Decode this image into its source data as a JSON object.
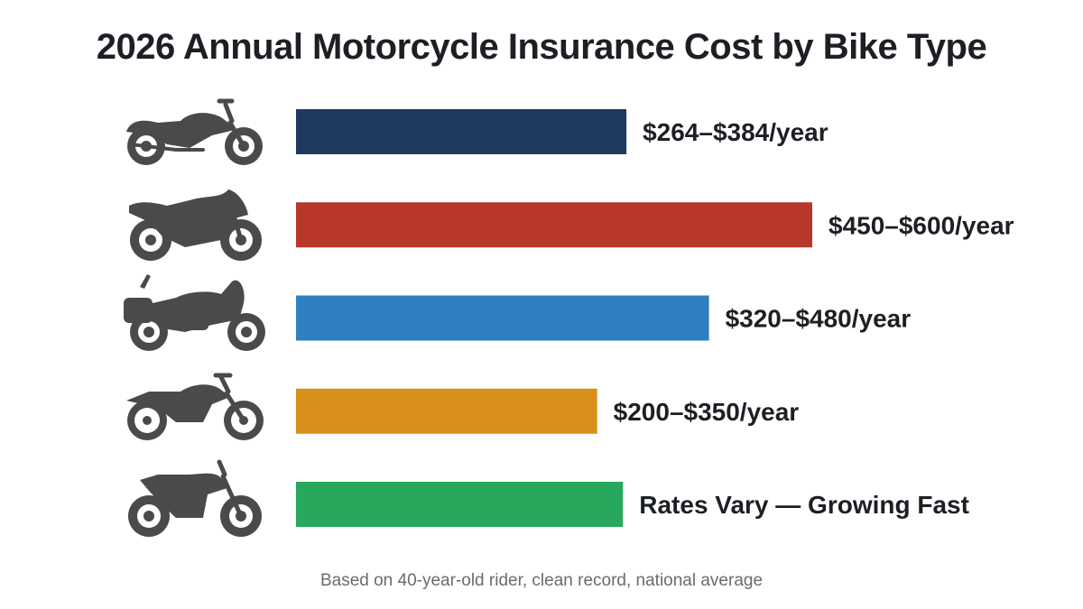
{
  "chart_data": {
    "type": "bar",
    "orientation": "horizontal",
    "title": "2026 Annual Motorcycle Insurance Cost by Bike Type",
    "categories": [
      "cruiser",
      "sport",
      "touring",
      "standard",
      "electric"
    ],
    "category_icons": [
      "cruiser-motorcycle-icon",
      "sport-motorcycle-icon",
      "touring-motorcycle-icon",
      "standard-motorcycle-icon",
      "electric-motorcycle-icon"
    ],
    "low": [
      264,
      450,
      320,
      200,
      null
    ],
    "high": [
      384,
      600,
      480,
      350,
      null
    ],
    "values": [
      384,
      600,
      480,
      350,
      380
    ],
    "labels": [
      "$264–$384/year",
      "$450–$600/year",
      "$320–$480/year",
      "$200–$350/year",
      "Rates Vary — Growing Fast"
    ],
    "colors": [
      "#1f3a5f",
      "#b8372b",
      "#2f7fc1",
      "#d9901a",
      "#27a85c"
    ],
    "xlim": [
      0,
      600
    ],
    "grid": false,
    "legend": "none",
    "footnote": "Based on 40-year-old rider, clean record, national average"
  }
}
